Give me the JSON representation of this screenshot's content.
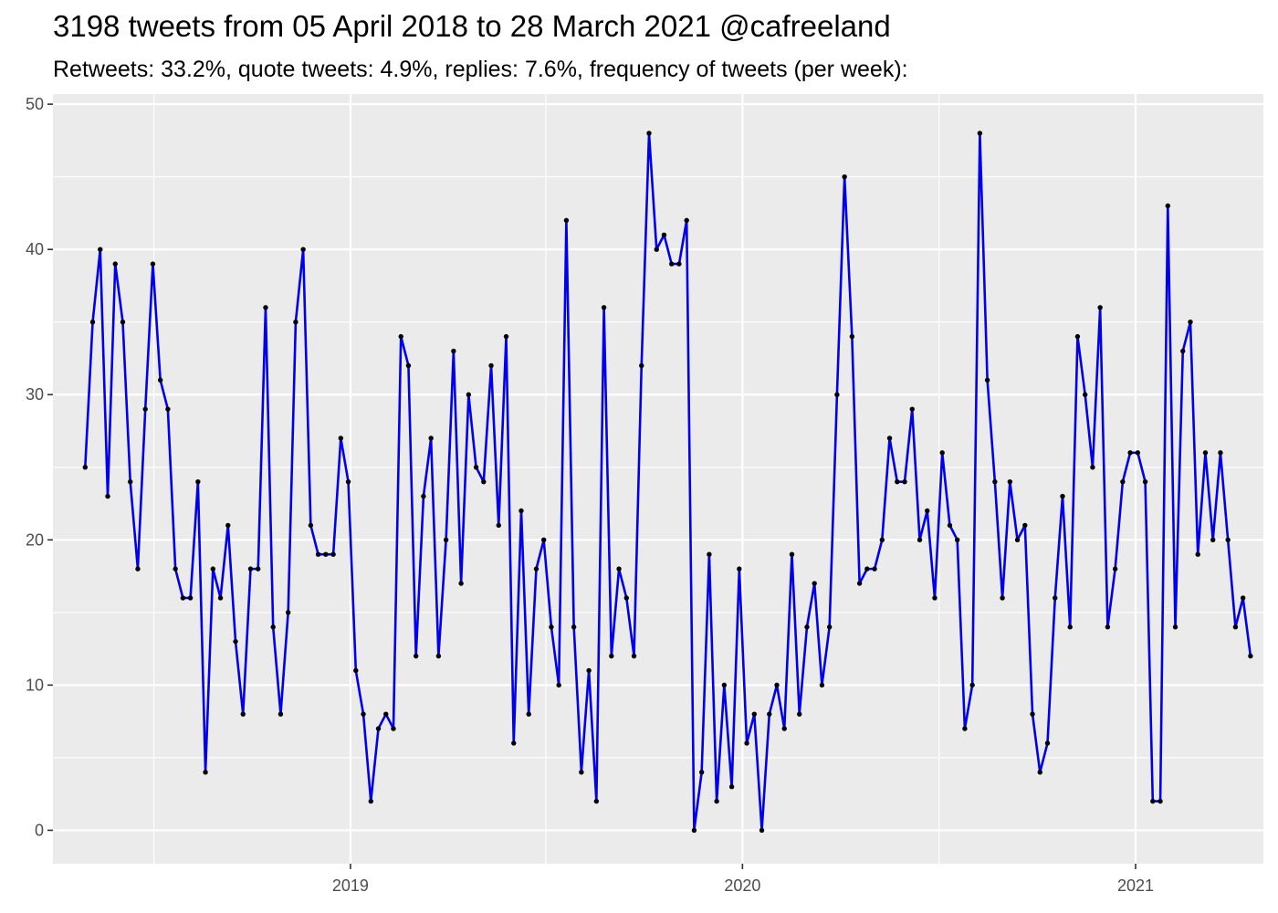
{
  "title": "3198 tweets from 05 April 2018 to 28 March 2021 @cafreeland",
  "subtitle": "Retweets: 33.2%, quote tweets: 4.9%, replies: 7.6%, frequency of tweets (per week):",
  "colors": {
    "panel_background": "#ebebeb",
    "grid": "#ffffff",
    "line": "#0000ee",
    "point": "#000000",
    "tick_text": "#4d4d4d"
  },
  "chart_data": {
    "type": "line",
    "title": "3198 tweets from 05 April 2018 to 28 March 2021 @cafreeland",
    "subtitle": "Retweets: 33.2%, quote tweets: 4.9%, replies: 7.6%, frequency of tweets (per week):",
    "xlabel": "",
    "ylabel": "",
    "x_type": "date",
    "x_start": "2018-04-29",
    "x_step_days": 7,
    "xlim": [
      "2018-03-30",
      "2021-04-30"
    ],
    "ylim": [
      -2.3,
      50.7
    ],
    "x_ticks": [
      "2019",
      "2020",
      "2021"
    ],
    "y_ticks": [
      0,
      10,
      20,
      30,
      40,
      50
    ],
    "grid": true,
    "legend": "none",
    "series": [
      {
        "values": [
          25,
          35,
          40,
          23,
          39,
          35,
          24,
          18,
          29,
          39,
          31,
          29,
          18,
          16,
          16,
          24,
          4,
          18,
          16,
          21,
          13,
          8,
          18,
          18,
          36,
          14,
          8,
          15,
          35,
          40,
          21,
          19,
          19,
          19,
          27,
          24,
          11,
          8,
          2,
          7,
          8,
          7,
          34,
          32,
          12,
          23,
          27,
          12,
          20,
          33,
          17,
          30,
          25,
          24,
          32,
          21,
          34,
          6,
          22,
          8,
          18,
          20,
          14,
          10,
          42,
          14,
          4,
          11,
          2,
          36,
          12,
          18,
          16,
          12,
          32,
          48,
          40,
          41,
          39,
          39,
          42,
          0,
          4,
          19,
          2,
          10,
          3,
          18,
          6,
          8,
          0,
          8,
          10,
          7,
          19,
          8,
          14,
          17,
          10,
          14,
          30,
          45,
          34,
          17,
          18,
          18,
          20,
          27,
          24,
          24,
          29,
          20,
          22,
          16,
          26,
          21,
          20,
          7,
          10,
          48,
          31,
          24,
          16,
          24,
          20,
          21,
          8,
          4,
          6,
          16,
          23,
          14,
          34,
          30,
          25,
          36,
          14,
          18,
          24,
          26,
          26,
          24,
          2,
          2,
          43,
          14,
          33,
          35,
          19,
          26,
          20,
          26,
          20,
          14,
          16,
          12
        ]
      }
    ]
  }
}
